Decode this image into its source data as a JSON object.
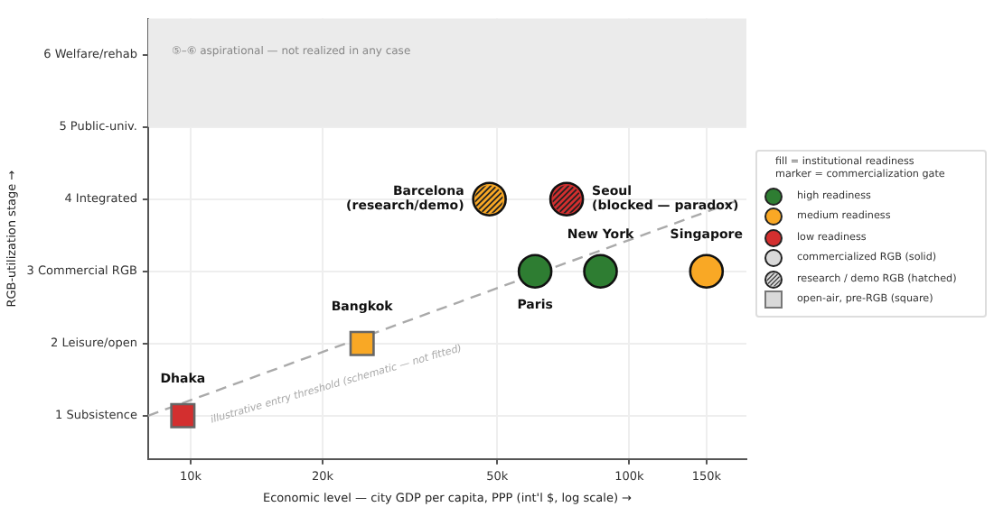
{
  "chart_data": {
    "type": "scatter",
    "xlabel": "Economic level — city GDP per capita, PPP (int'l $, log scale) →",
    "ylabel": "RGB-utilization stage →",
    "log": "x",
    "grid": true,
    "legend": "right",
    "legend_title": "fill = institutional readiness\nmarker = commercialization gate",
    "xlim": [
      8000,
      185000
    ],
    "xticks": [
      {
        "value": 10000,
        "label": "10k"
      },
      {
        "value": 20000,
        "label": "20k"
      },
      {
        "value": 50000,
        "label": "50k"
      },
      {
        "value": 100000,
        "label": "100k"
      },
      {
        "value": 150000,
        "label": "150k"
      }
    ],
    "ylim": [
      0.4,
      6.5
    ],
    "yticks": [
      {
        "value": 1,
        "label": "1 Subsistence"
      },
      {
        "value": 2,
        "label": "2 Leisure/open"
      },
      {
        "value": 3,
        "label": "3 Commercial RGB"
      },
      {
        "value": 4,
        "label": "4 Integrated"
      },
      {
        "value": 5,
        "label": "5 Public-univ."
      },
      {
        "value": 6,
        "label": "6 Welfare/rehab"
      }
    ],
    "bands": [
      {
        "axis": "y",
        "from": 5,
        "to": 6.5,
        "label": "⑤–⑥ aspirational — not realized in any case",
        "color": "#ebebeb"
      }
    ],
    "series": [
      {
        "name": "high readiness",
        "color": "#2e7d32",
        "marker": "circle"
      },
      {
        "name": "medium readiness",
        "color": "#f9a825",
        "marker": "circle"
      },
      {
        "name": "low readiness",
        "color": "#d32f2f",
        "marker": "circle"
      },
      {
        "name": "commercialized RGB (solid)",
        "color": "#d9d9d9",
        "marker": "circle"
      },
      {
        "name": "research / demo RGB (hatched)",
        "color": "#d9d9d9",
        "marker": "circle"
      },
      {
        "name": "open-air, pre-RGB (square)",
        "color": "#d9d9d9",
        "marker": "square"
      },
      {
        "marker": "circle",
        "x": [
          61000,
          86000,
          150000
        ],
        "values": [
          3,
          3,
          3
        ],
        "colors": [
          "#2e7d32",
          "#2e7d32",
          "#f9a825"
        ]
      },
      {
        "marker": "circle",
        "x": [
          48000,
          72000
        ],
        "values": [
          4,
          4
        ],
        "colors": [
          "#f9a825",
          "#d32f2f"
        ]
      },
      {
        "marker": "square",
        "x": [
          9600,
          24600
        ],
        "values": [
          1,
          2
        ],
        "colors": [
          "#d32f2f",
          "#f9a825"
        ]
      },
      {
        "type": "line",
        "color": "#aaaaaa",
        "line_style": "dashed",
        "marker": "none",
        "x": [
          8000,
          180000
        ],
        "values": [
          1,
          4
        ]
      }
    ],
    "annotations": [
      {
        "text": "Dhaka",
        "x": 9600,
        "y": 1
      },
      {
        "text": "Bangkok",
        "x": 24600,
        "y": 2
      },
      {
        "text": "Barcelona\n(research/demo)",
        "x": 48000,
        "y": 4
      },
      {
        "text": "Seoul\n(blocked — paradox)",
        "x": 72000,
        "y": 4
      },
      {
        "text": "Paris",
        "x": 61000,
        "y": 3
      },
      {
        "text": "New York",
        "x": 86000,
        "y": 3
      },
      {
        "text": "Singapore",
        "x": 150000,
        "y": 3
      },
      "illustrative entry threshold (schematic — not fitted)"
    ]
  }
}
